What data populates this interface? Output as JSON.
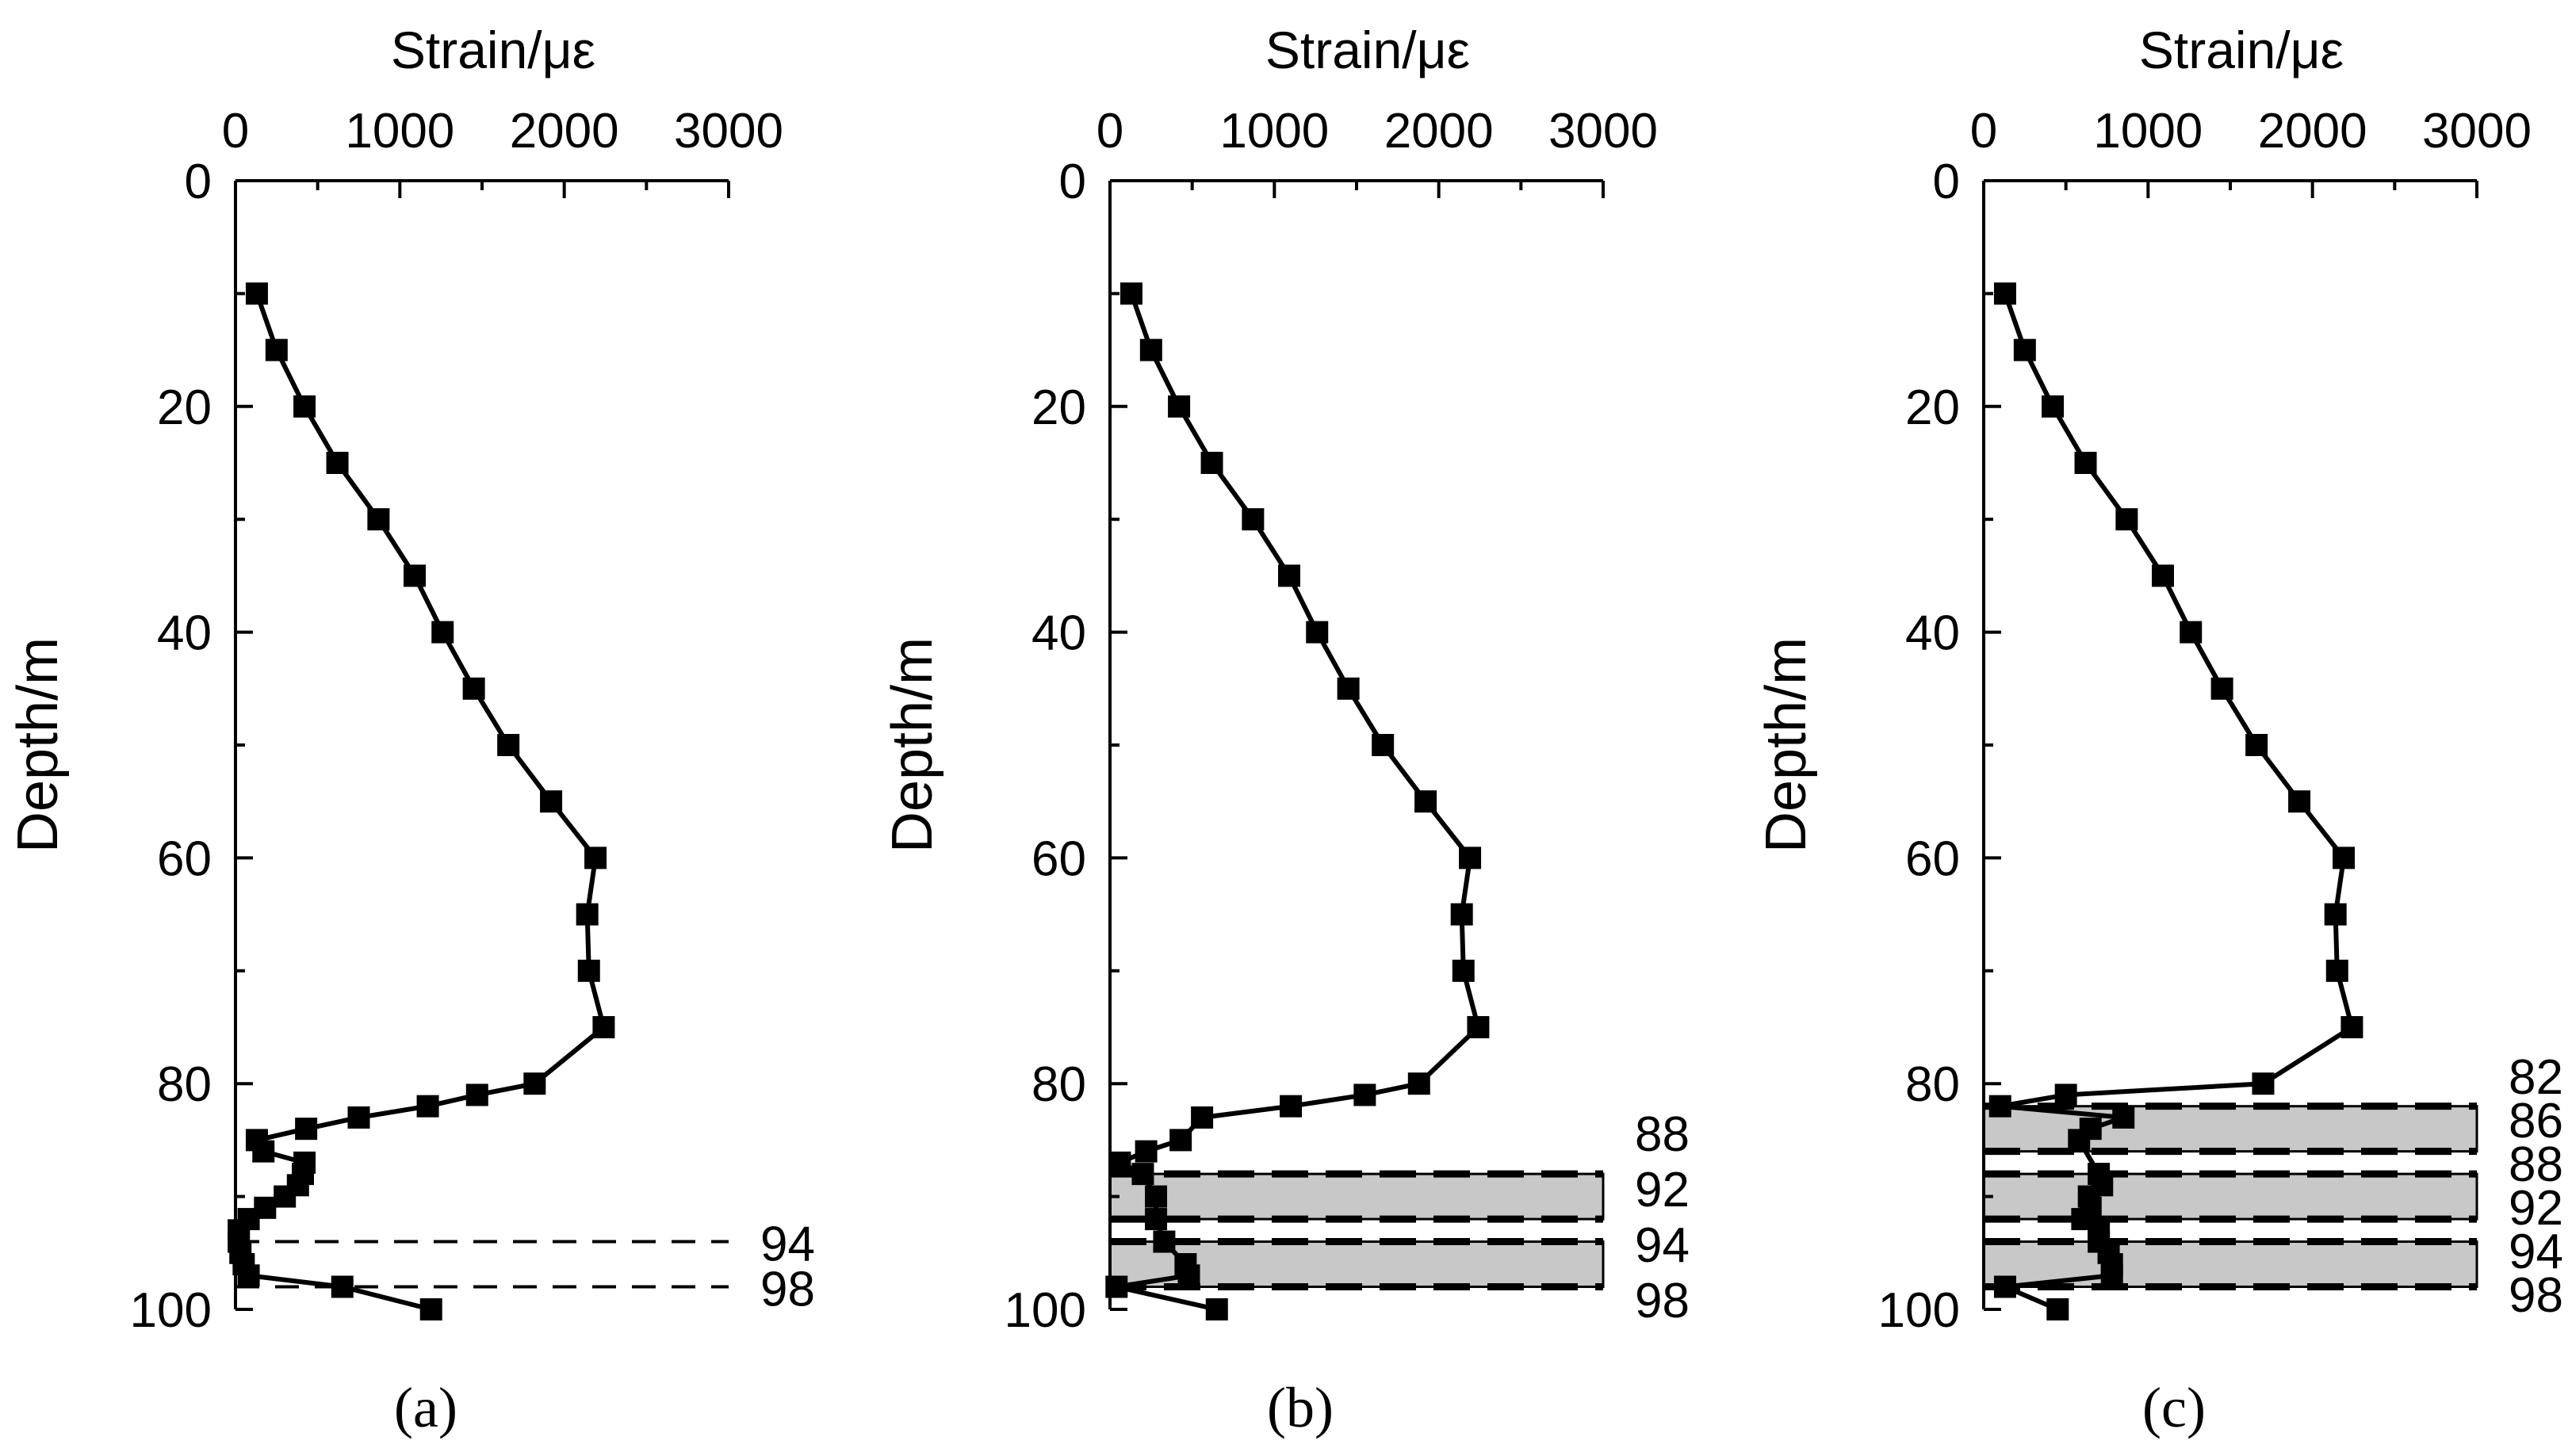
{
  "chart_data": [
    {
      "type": "line",
      "panel": "a",
      "caption": "(a)",
      "xlabel": "Strain/με",
      "ylabel": "Depth/m",
      "xlim": [
        0,
        3000
      ],
      "ylim": [
        0,
        100
      ],
      "x_ticks": [
        "0",
        "1000",
        "2000",
        "3000"
      ],
      "y_ticks": [
        "0",
        "20",
        "40",
        "60",
        "80",
        "100"
      ],
      "axis_position": "x-axis on top, depth increasing downward",
      "series": [
        {
          "marker": "square",
          "points": [
            {
              "strain": 130,
              "depth": 10
            },
            {
              "strain": 250,
              "depth": 15
            },
            {
              "strain": 420,
              "depth": 20
            },
            {
              "strain": 620,
              "depth": 25
            },
            {
              "strain": 870,
              "depth": 30
            },
            {
              "strain": 1090,
              "depth": 35
            },
            {
              "strain": 1260,
              "depth": 40
            },
            {
              "strain": 1450,
              "depth": 45
            },
            {
              "strain": 1660,
              "depth": 50
            },
            {
              "strain": 1920,
              "depth": 55
            },
            {
              "strain": 2190,
              "depth": 60
            },
            {
              "strain": 2140,
              "depth": 65
            },
            {
              "strain": 2150,
              "depth": 70
            },
            {
              "strain": 2240,
              "depth": 75
            },
            {
              "strain": 1820,
              "depth": 80
            },
            {
              "strain": 1470,
              "depth": 81
            },
            {
              "strain": 1170,
              "depth": 82
            },
            {
              "strain": 750,
              "depth": 83
            },
            {
              "strain": 430,
              "depth": 84
            },
            {
              "strain": 130,
              "depth": 85
            },
            {
              "strain": 170,
              "depth": 86
            },
            {
              "strain": 420,
              "depth": 87
            },
            {
              "strain": 410,
              "depth": 88
            },
            {
              "strain": 380,
              "depth": 89
            },
            {
              "strain": 300,
              "depth": 90
            },
            {
              "strain": 180,
              "depth": 91
            },
            {
              "strain": 80,
              "depth": 92
            },
            {
              "strain": 20,
              "depth": 93
            },
            {
              "strain": 20,
              "depth": 94
            },
            {
              "strain": 30,
              "depth": 95
            },
            {
              "strain": 50,
              "depth": 96
            },
            {
              "strain": 80,
              "depth": 97
            },
            {
              "strain": 650,
              "depth": 98
            },
            {
              "strain": 1190,
              "depth": 100
            }
          ]
        }
      ],
      "dashed_lines": [
        94,
        98
      ],
      "shaded_bands": [],
      "annotations": [
        "94",
        "98"
      ]
    },
    {
      "type": "line",
      "panel": "b",
      "caption": "(b)",
      "xlabel": "Strain/με",
      "ylabel": "Depth/m",
      "xlim": [
        0,
        3000
      ],
      "ylim": [
        0,
        100
      ],
      "x_ticks": [
        "0",
        "1000",
        "2000",
        "3000"
      ],
      "y_ticks": [
        "0",
        "20",
        "40",
        "60",
        "80",
        "100"
      ],
      "axis_position": "x-axis on top, depth increasing downward",
      "series": [
        {
          "marker": "square",
          "points": [
            {
              "strain": 130,
              "depth": 10
            },
            {
              "strain": 250,
              "depth": 15
            },
            {
              "strain": 420,
              "depth": 20
            },
            {
              "strain": 620,
              "depth": 25
            },
            {
              "strain": 870,
              "depth": 30
            },
            {
              "strain": 1090,
              "depth": 35
            },
            {
              "strain": 1260,
              "depth": 40
            },
            {
              "strain": 1450,
              "depth": 45
            },
            {
              "strain": 1660,
              "depth": 50
            },
            {
              "strain": 1920,
              "depth": 55
            },
            {
              "strain": 2190,
              "depth": 60
            },
            {
              "strain": 2140,
              "depth": 65
            },
            {
              "strain": 2150,
              "depth": 70
            },
            {
              "strain": 2240,
              "depth": 75
            },
            {
              "strain": 1880,
              "depth": 80
            },
            {
              "strain": 1550,
              "depth": 81
            },
            {
              "strain": 1100,
              "depth": 82
            },
            {
              "strain": 560,
              "depth": 83
            },
            {
              "strain": 430,
              "depth": 85
            },
            {
              "strain": 220,
              "depth": 86
            },
            {
              "strain": 60,
              "depth": 87
            },
            {
              "strain": 200,
              "depth": 88
            },
            {
              "strain": 280,
              "depth": 90
            },
            {
              "strain": 280,
              "depth": 92
            },
            {
              "strain": 330,
              "depth": 94
            },
            {
              "strain": 460,
              "depth": 96
            },
            {
              "strain": 480,
              "depth": 97
            },
            {
              "strain": 40,
              "depth": 98
            },
            {
              "strain": 650,
              "depth": 100
            }
          ]
        }
      ],
      "dashed_lines": [
        88,
        92,
        94,
        98
      ],
      "shaded_bands": [
        [
          88,
          92
        ],
        [
          94,
          98
        ]
      ],
      "annotations": [
        "88",
        "92",
        "94",
        "98"
      ]
    },
    {
      "type": "line",
      "panel": "c",
      "caption": "(c)",
      "xlabel": "Strain/με",
      "ylabel": "Depth/m",
      "xlim": [
        0,
        3000
      ],
      "ylim": [
        0,
        100
      ],
      "x_ticks": [
        "0",
        "1000",
        "2000",
        "3000"
      ],
      "y_ticks": [
        "0",
        "20",
        "40",
        "60",
        "80",
        "100"
      ],
      "axis_position": "x-axis on top, depth increasing downward",
      "series": [
        {
          "marker": "square",
          "points": [
            {
              "strain": 130,
              "depth": 10
            },
            {
              "strain": 250,
              "depth": 15
            },
            {
              "strain": 420,
              "depth": 20
            },
            {
              "strain": 620,
              "depth": 25
            },
            {
              "strain": 870,
              "depth": 30
            },
            {
              "strain": 1090,
              "depth": 35
            },
            {
              "strain": 1260,
              "depth": 40
            },
            {
              "strain": 1450,
              "depth": 45
            },
            {
              "strain": 1660,
              "depth": 50
            },
            {
              "strain": 1920,
              "depth": 55
            },
            {
              "strain": 2190,
              "depth": 60
            },
            {
              "strain": 2140,
              "depth": 65
            },
            {
              "strain": 2150,
              "depth": 70
            },
            {
              "strain": 2240,
              "depth": 75
            },
            {
              "strain": 1700,
              "depth": 80
            },
            {
              "strain": 500,
              "depth": 81
            },
            {
              "strain": 100,
              "depth": 82
            },
            {
              "strain": 850,
              "depth": 83
            },
            {
              "strain": 650,
              "depth": 84
            },
            {
              "strain": 580,
              "depth": 85
            },
            {
              "strain": 700,
              "depth": 88
            },
            {
              "strain": 720,
              "depth": 89
            },
            {
              "strain": 640,
              "depth": 90
            },
            {
              "strain": 650,
              "depth": 91
            },
            {
              "strain": 600,
              "depth": 92
            },
            {
              "strain": 700,
              "depth": 93
            },
            {
              "strain": 700,
              "depth": 94
            },
            {
              "strain": 760,
              "depth": 95
            },
            {
              "strain": 780,
              "depth": 96
            },
            {
              "strain": 780,
              "depth": 97
            },
            {
              "strain": 130,
              "depth": 98
            },
            {
              "strain": 450,
              "depth": 100
            }
          ]
        }
      ],
      "dashed_lines": [
        82,
        86,
        88,
        92,
        94,
        98
      ],
      "shaded_bands": [
        [
          82,
          86
        ],
        [
          88,
          92
        ],
        [
          94,
          98
        ]
      ],
      "annotations": [
        "82",
        "86",
        "88",
        "92",
        "94",
        "98"
      ]
    }
  ]
}
